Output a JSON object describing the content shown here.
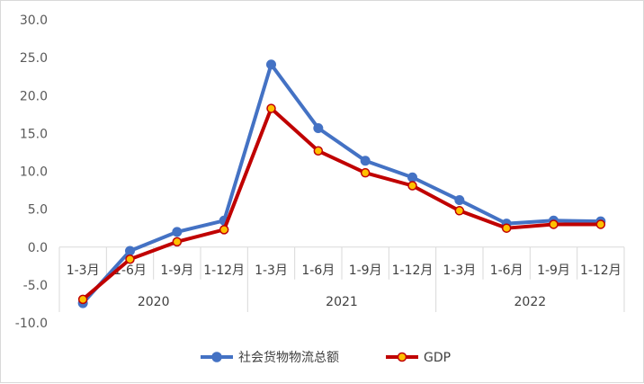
{
  "chart_data": {
    "type": "line",
    "title": "",
    "xlabel": "",
    "ylabel": "",
    "ylim": [
      -10,
      30
    ],
    "yticks": [
      "30.0",
      "25.0",
      "20.0",
      "15.0",
      "10.0",
      "5.0",
      "0.0",
      "-5.0",
      "-10.0"
    ],
    "ytick_values": [
      30,
      25,
      20,
      15,
      10,
      5,
      0,
      -5,
      -10
    ],
    "categories": [
      "1-3月",
      "1-6月",
      "1-9月",
      "1-12月",
      "1-3月",
      "1-6月",
      "1-9月",
      "1-12月",
      "1-3月",
      "1-6月",
      "1-9月",
      "1-12月"
    ],
    "groups": [
      "2020",
      "2021",
      "2022"
    ],
    "grid": false,
    "legend_position": "bottom",
    "series": [
      {
        "name": "社会货物物流总额",
        "color": "#4472C4",
        "values": [
          -7.4,
          -0.5,
          2.0,
          3.5,
          24.1,
          15.7,
          11.4,
          9.2,
          6.2,
          3.1,
          3.5,
          3.4
        ]
      },
      {
        "name": "GDP",
        "color": "#C00000",
        "marker_fill": "#FFC000",
        "values": [
          -6.9,
          -1.6,
          0.7,
          2.3,
          18.3,
          12.7,
          9.8,
          8.1,
          4.8,
          2.5,
          3.0,
          3.0
        ]
      }
    ]
  }
}
